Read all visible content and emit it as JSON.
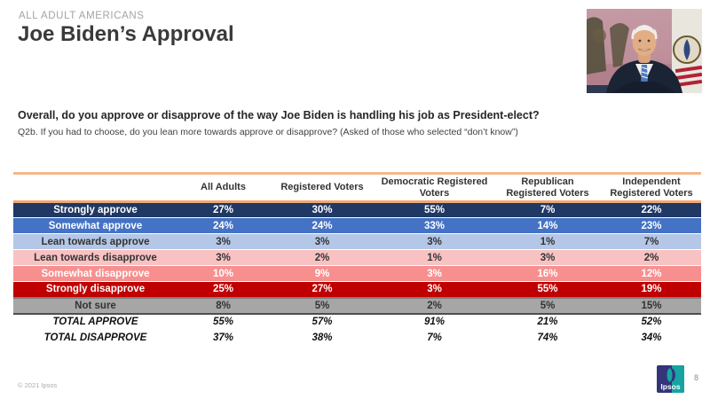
{
  "header": {
    "kicker": "ALL ADULT AMERICANS",
    "title": "Joe Biden’s Approval"
  },
  "question": {
    "main": "Overall, do you approve or disapprove of the way Joe Biden is handling his job as President-elect?",
    "sub": "Q2b. If you had to choose, do you lean more towards approve or disapprove? (Asked of those who selected  “don’t know”)"
  },
  "table": {
    "columns": [
      "",
      "All Adults",
      "Registered Voters",
      "Democratic Registered Voters",
      "Republican Registered Voters",
      "Independent Registered Voters"
    ],
    "rows": [
      {
        "label": "Strongly approve",
        "style": "navy",
        "values": [
          "27%",
          "30%",
          "55%",
          "7%",
          "22%"
        ]
      },
      {
        "label": "Somewhat approve",
        "style": "blue",
        "values": [
          "24%",
          "24%",
          "33%",
          "14%",
          "23%"
        ]
      },
      {
        "label": "Lean towards approve",
        "style": "lightblue",
        "values": [
          "3%",
          "3%",
          "3%",
          "1%",
          "7%"
        ]
      },
      {
        "label": "Lean towards disapprove",
        "style": "lightpink",
        "values": [
          "3%",
          "2%",
          "1%",
          "3%",
          "2%"
        ]
      },
      {
        "label": "Somewhat disapprove",
        "style": "salmon",
        "values": [
          "10%",
          "9%",
          "3%",
          "16%",
          "12%"
        ]
      },
      {
        "label": "Strongly disapprove",
        "style": "red",
        "values": [
          "25%",
          "27%",
          "3%",
          "55%",
          "19%"
        ]
      },
      {
        "label": "Not sure",
        "style": "gray",
        "values": [
          "8%",
          "5%",
          "2%",
          "5%",
          "15%"
        ]
      },
      {
        "label": "TOTAL APPROVE",
        "style": "total",
        "values": [
          "55%",
          "57%",
          "91%",
          "21%",
          "52%"
        ]
      },
      {
        "label": "TOTAL DISAPPROVE",
        "style": "total",
        "values": [
          "37%",
          "38%",
          "7%",
          "74%",
          "34%"
        ]
      }
    ]
  },
  "colors": {
    "strongly_approve": "#1F3864",
    "somewhat_approve": "#4472C4",
    "lean_approve": "#B4C7E7",
    "lean_disapprove": "#F8C2C2",
    "somewhat_disapprove": "#F88F8F",
    "strongly_disapprove": "#C00000",
    "not_sure": "#A6A6A6",
    "accent_line": "#F0A873"
  },
  "footer": {
    "copyright": "© 2021 Ipsos",
    "logo_text": "Ipsos",
    "page_number": "8"
  }
}
